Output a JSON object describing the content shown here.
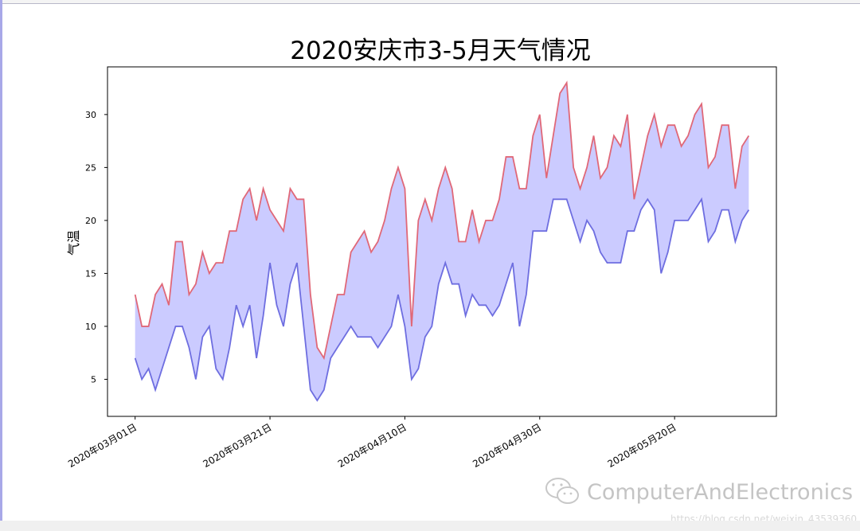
{
  "chart_data": {
    "type": "area",
    "title": "2020安庆市3-5月天气情况",
    "xlabel": "",
    "ylabel": "气温",
    "x_start": "2020-03-01",
    "x_end": "2020-05-31",
    "x_step": "1 day",
    "xticks": [
      "2020-03-01",
      "2020-03-21",
      "2020-04-10",
      "2020-04-30",
      "2020-05-20"
    ],
    "xtick_labels": [
      "2020年03月01日",
      "2020年03月21日",
      "2020年04月10日",
      "2020年04月30日",
      "2020年05月20日"
    ],
    "yticks": [
      5,
      10,
      15,
      20,
      25,
      30
    ],
    "ylim": [
      1.5,
      34.5
    ],
    "grid": false,
    "series": [
      {
        "color": "#e06878",
        "values": [
          13,
          10,
          10,
          13,
          14,
          12,
          18,
          18,
          13,
          14,
          17,
          15,
          16,
          16,
          19,
          19,
          22,
          23,
          20,
          23,
          21,
          20,
          19,
          23,
          22,
          22,
          13,
          8,
          7,
          10,
          13,
          13,
          17,
          18,
          19,
          17,
          18,
          20,
          23,
          25,
          23,
          10,
          20,
          22,
          20,
          23,
          25,
          23,
          18,
          18,
          21,
          18,
          20,
          20,
          22,
          26,
          26,
          23,
          23,
          28,
          30,
          24,
          28,
          32,
          33,
          25,
          23,
          25,
          28,
          24,
          25,
          28,
          27,
          30,
          22,
          25,
          28,
          30,
          27,
          29,
          29,
          27,
          28,
          30,
          31,
          25,
          26,
          29,
          29,
          23,
          27,
          28
        ]
      },
      {
        "color": "#6e6ee0",
        "values": [
          7,
          5,
          6,
          4,
          6,
          8,
          10,
          10,
          8,
          5,
          9,
          10,
          6,
          5,
          8,
          12,
          10,
          12,
          7,
          11,
          16,
          12,
          10,
          14,
          16,
          10,
          4,
          3,
          4,
          7,
          8,
          9,
          10,
          9,
          9,
          9,
          8,
          9,
          10,
          13,
          10,
          5,
          6,
          9,
          10,
          14,
          16,
          14,
          14,
          11,
          13,
          12,
          12,
          11,
          12,
          14,
          16,
          10,
          13,
          19,
          19,
          19,
          22,
          22,
          22,
          20,
          18,
          20,
          19,
          17,
          16,
          16,
          16,
          19,
          19,
          21,
          22,
          21,
          15,
          17,
          20,
          20,
          20,
          21,
          22,
          18,
          19,
          21,
          21,
          18,
          20,
          21
        ]
      }
    ],
    "fill_between_color": "#c8c8ff"
  },
  "watermark": {
    "brand": "ComputerAndElectronics",
    "url": "https://blog.csdn.net/weixin_43539360",
    "icon": "wechat-icon"
  }
}
